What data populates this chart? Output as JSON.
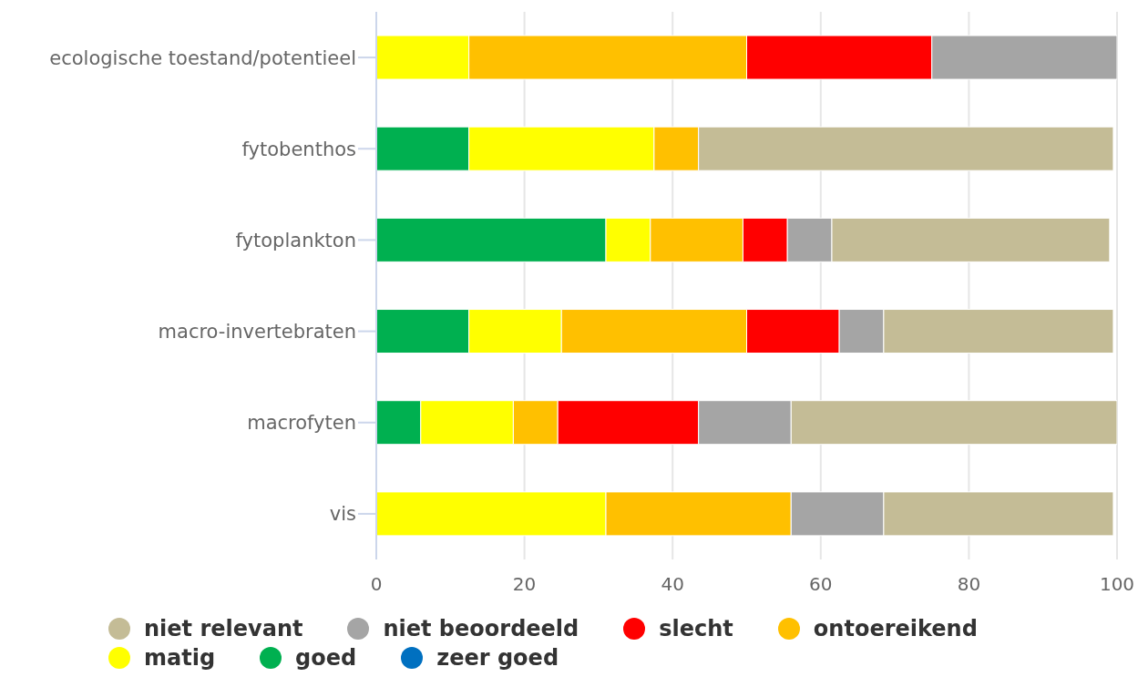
{
  "chart_data": {
    "type": "bar",
    "orientation": "horizontal",
    "stacked": true,
    "categories": [
      "ecologische toestand/potentieel",
      "fytobenthos",
      "fytoplankton",
      "macro-invertebraten",
      "macrofyten",
      "vis"
    ],
    "series": [
      {
        "name": "zeer goed",
        "color": "#0070c0",
        "values": [
          0,
          0,
          0,
          0,
          0,
          0
        ]
      },
      {
        "name": "goed",
        "color": "#00b050",
        "values": [
          0,
          12.5,
          31,
          12.5,
          6,
          0
        ]
      },
      {
        "name": "matig",
        "color": "#ffff00",
        "values": [
          12.5,
          25,
          6,
          12.5,
          12.5,
          31
        ]
      },
      {
        "name": "ontoereikend",
        "color": "#ffc000",
        "values": [
          37.5,
          6,
          12.5,
          25,
          6,
          25
        ]
      },
      {
        "name": "slecht",
        "color": "#ff0000",
        "values": [
          25,
          0,
          6,
          12.5,
          19,
          0
        ]
      },
      {
        "name": "niet beoordeeld",
        "color": "#a5a5a5",
        "values": [
          25,
          0,
          6,
          6,
          12.5,
          12.5
        ]
      },
      {
        "name": "niet relevant",
        "color": "#c4bc96",
        "values": [
          0,
          56,
          37.5,
          31,
          44,
          31
        ]
      }
    ],
    "xlim": [
      0,
      100
    ],
    "xticks": [
      0,
      20,
      40,
      60,
      80,
      100
    ],
    "grid": "x",
    "legend": "bottom"
  }
}
